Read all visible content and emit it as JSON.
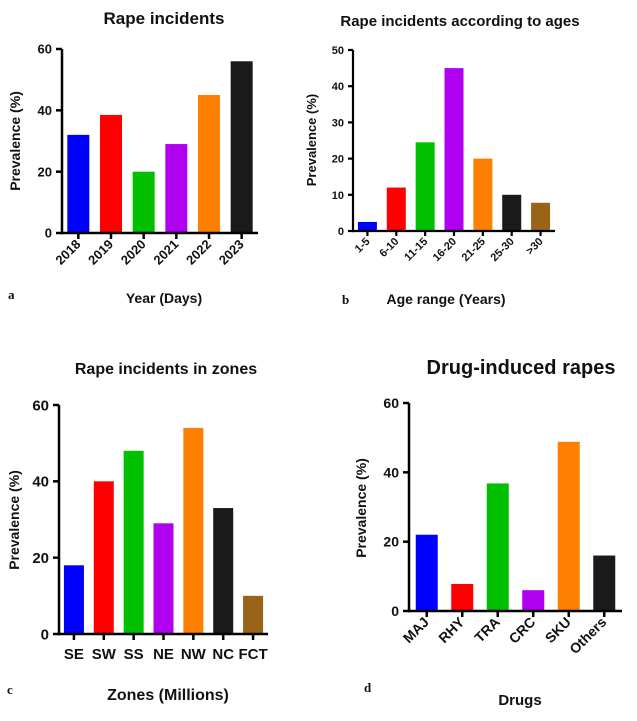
{
  "chart_data": [
    {
      "type": "bar",
      "panel_label": "a",
      "title": "Rape incidents",
      "xlabel": "Year (Days)",
      "ylabel": "Prevalence (%)",
      "categories": [
        "2018",
        "2019",
        "2020",
        "2021",
        "2022",
        "2023"
      ],
      "values": [
        32,
        38.5,
        20,
        29,
        45,
        56
      ],
      "colors": [
        "#0000ff",
        "#ff0000",
        "#00c000",
        "#b000f0",
        "#ff8000",
        "#1a1a1a"
      ],
      "ylim": [
        0,
        60
      ],
      "yticks": [
        0,
        20,
        40,
        60
      ],
      "xtick_rotation": "diagonal",
      "grid": false,
      "legend": "none"
    },
    {
      "type": "bar",
      "panel_label": "b",
      "title": "Rape incidents according to ages",
      "xlabel": "Age range (Years)",
      "ylabel": "Prevalence (%)",
      "categories": [
        "1-5",
        "6-10",
        "11-15",
        "16-20",
        "21-25",
        "25-30",
        ">30"
      ],
      "values": [
        2.5,
        12,
        24.5,
        45,
        20,
        10,
        7.8
      ],
      "colors": [
        "#0000ff",
        "#ff0000",
        "#00c000",
        "#b000f0",
        "#ff8000",
        "#1a1a1a",
        "#9a6418"
      ],
      "ylim": [
        0,
        50
      ],
      "yticks": [
        0,
        10,
        20,
        30,
        40,
        50
      ],
      "xtick_rotation": "diagonal",
      "grid": false,
      "legend": "none"
    },
    {
      "type": "bar",
      "panel_label": "c",
      "title": "Rape incidents in zones",
      "xlabel": "Zones (Millions)",
      "ylabel": "Prevalence (%)",
      "categories": [
        "SE",
        "SW",
        "SS",
        "NE",
        "NW",
        "NC",
        "FCT"
      ],
      "values": [
        18,
        40,
        48,
        29,
        54,
        33,
        10
      ],
      "colors": [
        "#0000ff",
        "#ff0000",
        "#00c000",
        "#b000f0",
        "#ff8000",
        "#1a1a1a",
        "#9a6418"
      ],
      "ylim": [
        0,
        60
      ],
      "yticks": [
        0,
        20,
        40,
        60
      ],
      "xtick_rotation": "horizontal",
      "grid": false,
      "legend": "none"
    },
    {
      "type": "bar",
      "panel_label": "d",
      "title": "Drug-induced rapes",
      "xlabel": "Drugs",
      "ylabel": "Prevalence (%)",
      "categories": [
        "MAJ",
        "RHY",
        "TRA",
        "CRC",
        "SKU",
        "Others"
      ],
      "values": [
        22,
        7.8,
        36.8,
        6,
        48.8,
        16
      ],
      "colors": [
        "#0000ff",
        "#ff0000",
        "#00c000",
        "#b000f0",
        "#ff8000",
        "#1a1a1a"
      ],
      "ylim": [
        0,
        60
      ],
      "yticks": [
        0,
        20,
        40,
        60
      ],
      "xtick_rotation": "diagonal",
      "grid": false,
      "legend": "none"
    }
  ]
}
